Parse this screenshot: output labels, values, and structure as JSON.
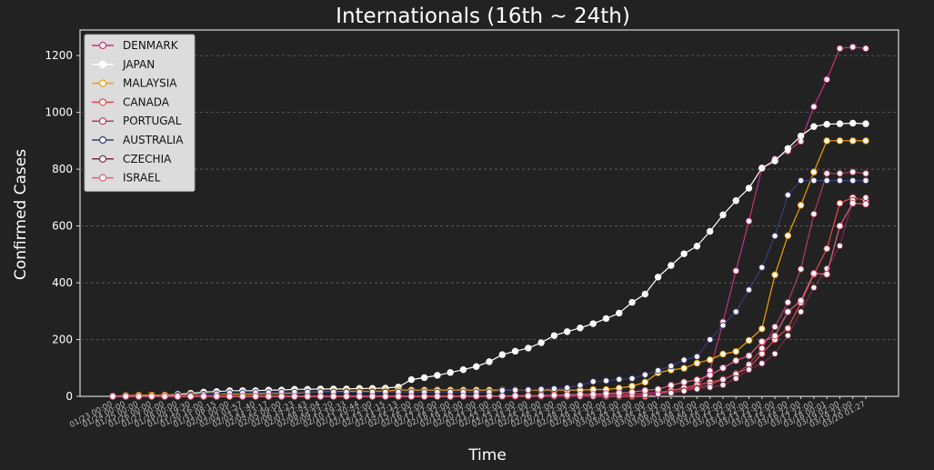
{
  "chart_data": {
    "type": "line",
    "title": "Internationals (16th ~ 24th)",
    "xlabel": "Time",
    "ylabel": "Confirmed Cases",
    "ylim": [
      0,
      1290
    ],
    "yticks": [
      0,
      200,
      400,
      600,
      800,
      1000,
      1200
    ],
    "grid": "horizontal dashed",
    "legend_position": "top-left",
    "x": [
      "01/23 00:00",
      "01/24 00:00",
      "01/25 00:00",
      "01/26 00:00",
      "01/27 00:00",
      "01/28 00:00",
      "01/29 19:30",
      "01/30 16:00",
      "01/31 08:15",
      "02/01 00:00",
      "02/02 01:57",
      "02/03 21:40",
      "02/04 23:17",
      "02/05 09:00",
      "02/06 14:23",
      "02/07 22:43",
      "02/08 23:04",
      "02/09 23:20",
      "02/10 19:33",
      "02/11 20:44",
      "02/12 22:00",
      "02/13 21:15",
      "02/14 22:13",
      "02/15 22:00",
      "02/16 22:00",
      "02/17 22:00",
      "02/18 22:00",
      "02/19 22:00",
      "02/20 22:00",
      "02/21 22:00",
      "02/22 22:00",
      "02/23 22:00",
      "02/24 22:00",
      "02/25 22:00",
      "02/26 22:00",
      "02/27 22:00",
      "02/28 22:00",
      "02/29 22:00",
      "03/01 22:00",
      "03/02 22:00",
      "03/03 22:00",
      "03/04 22:00",
      "03/05 22:00",
      "03/06 22:00",
      "03/07 22:00",
      "03/08 22:00",
      "03/09 22:00",
      "03/10 22:00",
      "03/11 22:00",
      "03/12 22:00",
      "03/13 22:00",
      "03/14 22:00",
      "03/15 22:00",
      "03/16 22:00",
      "03/17 22:00",
      "03/18 00:01",
      "03/19 02:00",
      "03/19 23:00",
      "03/20 01:27"
    ],
    "xtick_labels_shown": [
      "01/23 00:00",
      "01/24 00:00",
      "01/25 00:00",
      "01/26 00:00",
      "01/27 00:00",
      "01/28 00:00",
      "01/29 19:30",
      "01/30 16:00",
      "01/31 08:15",
      "02/01 00:00",
      "02/02 01:57",
      "02/03 21:40",
      "02/04 23:17",
      "02/05 09:00",
      "02/06 14:23",
      "02/07 22:43",
      "02/08 23:04",
      "02/09 23:20",
      "02/10 19:33",
      "02/11 20:44",
      "02/12 22:00",
      "02/13 21:15",
      "02/14 22:13",
      "02/15 22:00",
      "02/16 22:00",
      "02/17 22:00",
      "02/18 22:00",
      "02/19 22:00",
      "02/20 22:00",
      "02/21 22:00",
      "02/22 22:00",
      "02/23 22:00",
      "02/24 22:00",
      "02/25 22:00",
      "02/26 22:00",
      "02/27 22:00",
      "02/28 22:00",
      "02/29 22:00",
      "03/01 22:00",
      "03/02 22:00",
      "03/03 22:00",
      "03/04 22:00",
      "03/05 22:00",
      "03/06 22:00",
      "03/07 22:00",
      "03/08 22:00",
      "03/09 22:00",
      "03/10 22:00",
      "03/11 22:00",
      "03/12 22:00",
      "03/13 22:00",
      "03/14 22:00",
      "03/15 22:00",
      "03/16 22:00",
      "03/17 22:00",
      "03/18 00:01",
      "03/19 02:00",
      "03/19 23:00",
      "03/20 01:27"
    ],
    "series": [
      {
        "name": "DENMARK",
        "color": "#c4347a",
        "marker_fill": "#ffffff",
        "values": [
          0,
          0,
          0,
          0,
          0,
          0,
          0,
          0,
          0,
          0,
          0,
          0,
          0,
          0,
          0,
          0,
          0,
          0,
          0,
          0,
          0,
          0,
          0,
          0,
          0,
          0,
          0,
          0,
          0,
          0,
          0,
          0,
          0,
          1,
          1,
          2,
          3,
          4,
          5,
          6,
          8,
          10,
          15,
          20,
          25,
          35,
          90,
          262,
          442,
          617,
          804,
          836,
          864,
          898,
          1020,
          1116,
          1225,
          1230,
          1225
        ]
      },
      {
        "name": "JAPAN",
        "color": "#ffffff",
        "marker_fill": "#ffffff",
        "values": [
          1,
          2,
          3,
          4,
          4,
          7,
          11,
          15,
          17,
          20,
          20,
          20,
          22,
          22,
          25,
          25,
          26,
          26,
          26,
          28,
          28,
          29,
          33,
          59,
          66,
          74,
          84,
          94,
          105,
          122,
          147,
          159,
          170,
          189,
          214,
          228,
          241,
          256,
          274,
          293,
          331,
          360,
          420,
          461,
          502,
          529,
          581,
          639,
          689,
          733,
          804,
          829,
          873,
          917,
          950,
          958,
          960,
          962,
          960
        ]
      },
      {
        "name": "MALAYSIA",
        "color": "#f5a000",
        "marker_fill": "#ffffff",
        "values": [
          0,
          3,
          4,
          4,
          4,
          4,
          7,
          8,
          8,
          8,
          8,
          8,
          10,
          10,
          12,
          14,
          16,
          16,
          18,
          18,
          18,
          19,
          22,
          22,
          22,
          22,
          22,
          22,
          22,
          22,
          22,
          22,
          22,
          22,
          22,
          22,
          22,
          24,
          24,
          29,
          36,
          50,
          83,
          93,
          99,
          117,
          129,
          149,
          158,
          197,
          238,
          428,
          566,
          673,
          790,
          900,
          900,
          900,
          900
        ]
      },
      {
        "name": "CANADA",
        "color": "#e64a4a",
        "marker_fill": "#ffffff",
        "values": [
          0,
          0,
          0,
          0,
          0,
          0,
          0,
          0,
          0,
          0,
          0,
          0,
          0,
          0,
          0,
          0,
          0,
          0,
          0,
          0,
          0,
          0,
          0,
          0,
          0,
          0,
          0,
          0,
          0,
          0,
          0,
          0,
          0,
          0,
          0,
          0,
          0,
          0,
          0,
          0,
          0,
          0,
          10,
          20,
          30,
          40,
          50,
          60,
          80,
          100,
          150,
          200,
          240,
          330,
          430,
          520,
          680,
          700,
          690
        ]
      },
      {
        "name": "PORTUGAL",
        "color": "#b04060",
        "marker_fill": "#ffffff",
        "values": [
          0,
          0,
          0,
          0,
          0,
          0,
          0,
          0,
          0,
          0,
          0,
          0,
          0,
          0,
          0,
          0,
          0,
          0,
          0,
          0,
          0,
          0,
          0,
          0,
          0,
          0,
          0,
          0,
          0,
          0,
          0,
          0,
          0,
          0,
          0,
          0,
          0,
          0,
          0,
          2,
          4,
          5,
          8,
          13,
          20,
          30,
          41,
          59,
          78,
          112,
          169,
          245,
          331,
          448,
          642,
          785,
          785,
          790,
          785
        ]
      },
      {
        "name": "AUSTRALIA",
        "color": "#3c3c7a",
        "marker_fill": "#ffffff",
        "values": [
          0,
          0,
          0,
          0,
          0,
          4,
          4,
          7,
          9,
          12,
          12,
          13,
          13,
          14,
          15,
          15,
          15,
          15,
          15,
          15,
          15,
          15,
          15,
          15,
          15,
          15,
          15,
          15,
          15,
          15,
          21,
          22,
          23,
          25,
          27,
          30,
          39,
          52,
          55,
          60,
          63,
          76,
          91,
          107,
          128,
          140,
          200,
          250,
          298,
          375,
          454,
          565,
          709,
          760,
          760,
          760,
          760,
          760,
          760
        ]
      },
      {
        "name": "CZECHIA",
        "color": "#7a2a4a",
        "marker_fill": "#ffffff",
        "values": [
          0,
          0,
          0,
          0,
          0,
          0,
          0,
          0,
          0,
          0,
          0,
          0,
          0,
          0,
          0,
          0,
          0,
          0,
          0,
          0,
          0,
          0,
          0,
          0,
          0,
          0,
          0,
          0,
          0,
          0,
          0,
          0,
          0,
          0,
          0,
          0,
          0,
          0,
          3,
          3,
          5,
          5,
          8,
          12,
          19,
          26,
          32,
          40,
          63,
          94,
          116,
          150,
          214,
          298,
          383,
          450,
          530,
          690,
          700
        ]
      },
      {
        "name": "ISRAEL",
        "color": "#e06080",
        "marker_fill": "#ffffff",
        "values": [
          0,
          0,
          0,
          0,
          0,
          0,
          0,
          0,
          0,
          0,
          0,
          0,
          0,
          0,
          0,
          0,
          0,
          0,
          0,
          0,
          0,
          0,
          0,
          0,
          0,
          0,
          0,
          1,
          1,
          1,
          1,
          2,
          2,
          3,
          4,
          5,
          7,
          7,
          10,
          12,
          15,
          21,
          25,
          39,
          50,
          58,
          75,
          100,
          126,
          143,
          193,
          213,
          298,
          337,
          433,
          430,
          600,
          680,
          677
        ]
      }
    ]
  }
}
